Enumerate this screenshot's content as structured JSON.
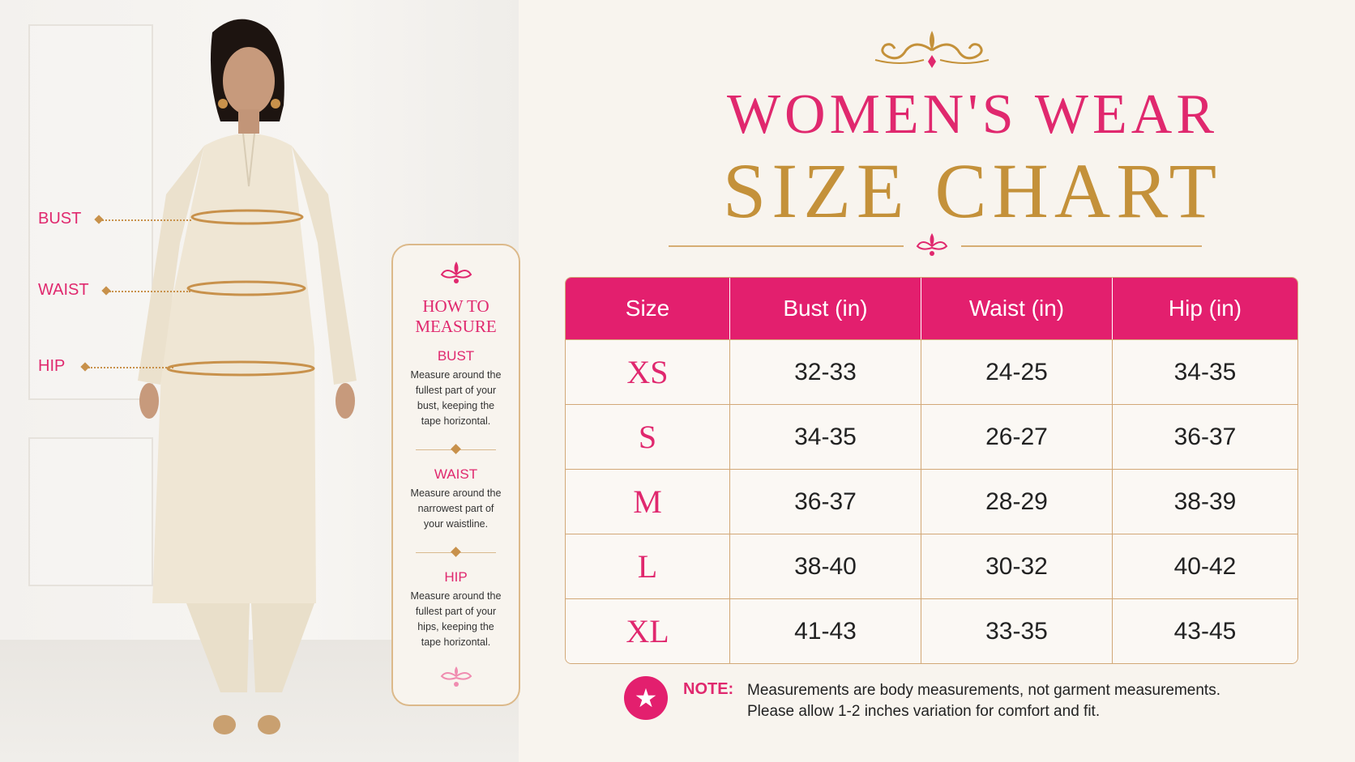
{
  "labels": {
    "bust": "BUST",
    "waist": "WAIST",
    "hip": "HIP"
  },
  "how_to_measure": {
    "title_line1": "HOW TO",
    "title_line2": "MEASURE",
    "sections": [
      {
        "heading": "BUST",
        "lines": [
          "Measure around the",
          "fullest part of your",
          "bust, keeping the",
          "tape horizontal."
        ]
      },
      {
        "heading": "WAIST",
        "lines": [
          "Measure around the",
          "narrowest part of",
          "your waistline."
        ]
      },
      {
        "heading": "HIP",
        "lines": [
          "Measure around the",
          "fullest part of your",
          "hips, keeping the",
          "tape horizontal."
        ]
      }
    ]
  },
  "title": {
    "line1": "WOMEN'S WEAR",
    "line2": "SIZE CHART"
  },
  "table": {
    "headers": [
      "Size",
      "Bust (in)",
      "Waist (in)",
      "Hip (in)"
    ],
    "rows": [
      [
        "XS",
        "32-33",
        "24-25",
        "34-35"
      ],
      [
        "S",
        "34-35",
        "26-27",
        "36-37"
      ],
      [
        "M",
        "36-37",
        "28-29",
        "38-39"
      ],
      [
        "L",
        "38-40",
        "30-32",
        "40-42"
      ],
      [
        "XL",
        "41-43",
        "33-35",
        "43-45"
      ]
    ]
  },
  "note": {
    "label": "NOTE:",
    "line1": "Measurements are body measurements, not garment measurements.",
    "line2": "Please allow 1-2 inches variation for comfort and fit."
  },
  "colors": {
    "accent_pink": "#e31f6e",
    "gold": "#c4913a"
  }
}
